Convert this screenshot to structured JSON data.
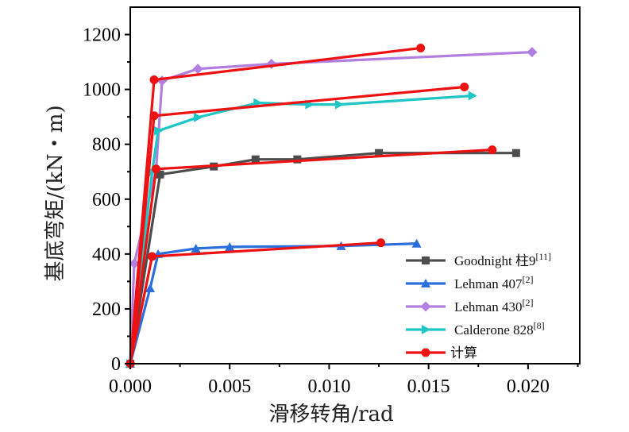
{
  "chart_data": {
    "type": "line",
    "title": "",
    "xlabel": "滑移转角/rad",
    "ylabel": "基底弯矩/(kN・m)",
    "xlim": [
      0,
      0.0226
    ],
    "ylim": [
      0,
      1300
    ],
    "xticks": [
      0.0,
      0.005,
      0.01,
      0.015,
      0.02
    ],
    "xtick_labels": [
      "0.000",
      "0.005",
      "0.010",
      "0.015",
      "0.020"
    ],
    "yticks": [
      0,
      200,
      400,
      600,
      800,
      1000,
      1200
    ],
    "ytick_labels": [
      "0",
      "200",
      "400",
      "600",
      "800",
      "1000",
      "1200"
    ],
    "grid": false,
    "legend_position": "bottom-right",
    "series": [
      {
        "name": "Goodnight 柱9",
        "ref": "[11]",
        "color": "#4d4d4d",
        "marker": "square",
        "points": [
          [
            0,
            0
          ],
          [
            0.0015,
            690
          ],
          [
            0.0042,
            719
          ],
          [
            0.0063,
            745
          ],
          [
            0.0084,
            745
          ],
          [
            0.0125,
            768
          ],
          [
            0.0194,
            768
          ]
        ]
      },
      {
        "name": "Lehman 407",
        "ref": "[2]",
        "color": "#2a6fdb",
        "marker": "triangle-up",
        "points": [
          [
            0,
            0
          ],
          [
            0.001,
            275
          ],
          [
            0.0014,
            400
          ],
          [
            0.0033,
            420
          ],
          [
            0.005,
            426
          ],
          [
            0.0106,
            429
          ],
          [
            0.0144,
            438
          ]
        ]
      },
      {
        "name": "Lehman 430",
        "ref": "[2]",
        "color": "#b07fe0",
        "marker": "diamond",
        "points": [
          [
            0,
            0
          ],
          [
            0.0002,
            365
          ],
          [
            0.0013,
            710
          ],
          [
            0.0016,
            1032
          ],
          [
            0.0034,
            1075
          ],
          [
            0.0071,
            1093
          ],
          [
            0.0202,
            1136
          ]
        ]
      },
      {
        "name": "Calderone 828",
        "ref": "[8]",
        "color": "#1fc6c6",
        "marker": "triangle-right",
        "points": [
          [
            0,
            0
          ],
          [
            0.0011,
            698
          ],
          [
            0.0014,
            849
          ],
          [
            0.0034,
            898
          ],
          [
            0.0064,
            951
          ],
          [
            0.009,
            945
          ],
          [
            0.0105,
            945
          ],
          [
            0.0172,
            977
          ]
        ]
      },
      {
        "name": "计算",
        "ref": "",
        "color": "#ee1111",
        "marker": "circle",
        "segments": [
          [
            [
              0,
              0
            ],
            [
              0.0011,
              391
            ],
            [
              0.0126,
              441
            ]
          ],
          [
            [
              0,
              0
            ],
            [
              0.0013,
              710
            ],
            [
              0.0182,
              780
            ]
          ],
          [
            [
              0,
              0
            ],
            [
              0.0012,
              904
            ],
            [
              0.0168,
              1009
            ]
          ],
          [
            [
              0,
              0
            ],
            [
              0.0012,
              1035
            ],
            [
              0.0146,
              1151
            ]
          ]
        ]
      }
    ]
  }
}
